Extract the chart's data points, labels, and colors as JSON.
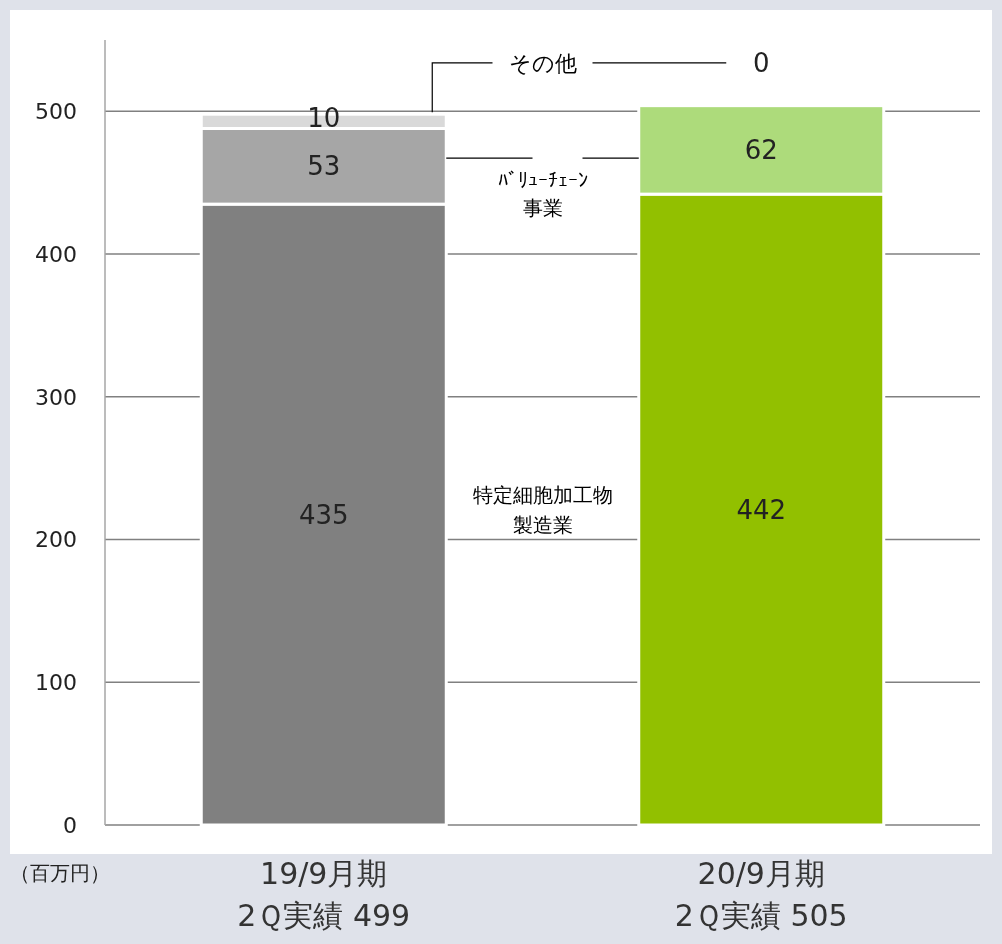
{
  "chart_data": {
    "type": "bar",
    "stacked": true,
    "ylabel": "（百万円）",
    "categories": [
      "19/9月期\n2Ｑ実績 499",
      "20/9月期\n2Ｑ実績 505"
    ],
    "series": [
      {
        "name": "特定細胞加工物製造業",
        "colors": [
          "#808080",
          "#92c000"
        ],
        "values": [
          435,
          442
        ]
      },
      {
        "name": "ﾊﾞﾘｭｰﾁｪｰﾝ事業",
        "colors": [
          "#a6a6a6",
          "#addb7b"
        ],
        "values": [
          53,
          62
        ]
      },
      {
        "name": "その他",
        "colors": [
          "#d9d9d9",
          "#d6ecb0"
        ],
        "values": [
          10,
          0
        ]
      }
    ],
    "ylim": [
      0,
      550
    ],
    "yticks": [
      0,
      100,
      200,
      300,
      400,
      500
    ],
    "grid": "y",
    "data_labels": true
  }
}
